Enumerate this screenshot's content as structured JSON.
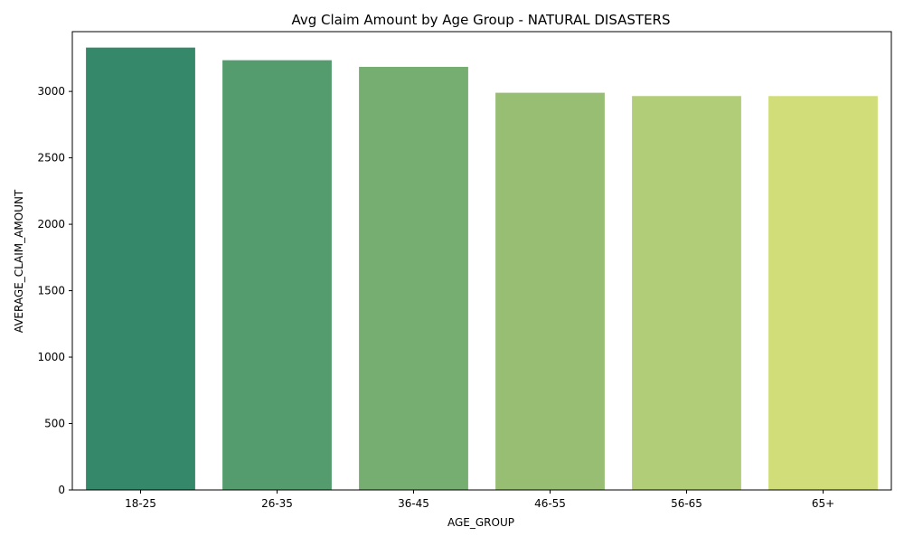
{
  "chart_data": {
    "type": "bar",
    "title": "Avg Claim Amount by Age Group - NATURAL DISASTERS",
    "xlabel": "AGE_GROUP",
    "ylabel": "AVERAGE_CLAIM_AMOUNT",
    "categories": [
      "18-25",
      "26-35",
      "36-45",
      "46-55",
      "56-65",
      "65+"
    ],
    "values": [
      3330,
      3235,
      3185,
      2990,
      2965,
      2965
    ],
    "colors": [
      "#35896a",
      "#549c6e",
      "#76ad71",
      "#98be74",
      "#b2cd77",
      "#d1dd78"
    ],
    "ylim": [
      0,
      3450
    ],
    "yticks": [
      0,
      500,
      1000,
      1500,
      2000,
      2500,
      3000
    ],
    "grid": false,
    "legend": "none"
  }
}
